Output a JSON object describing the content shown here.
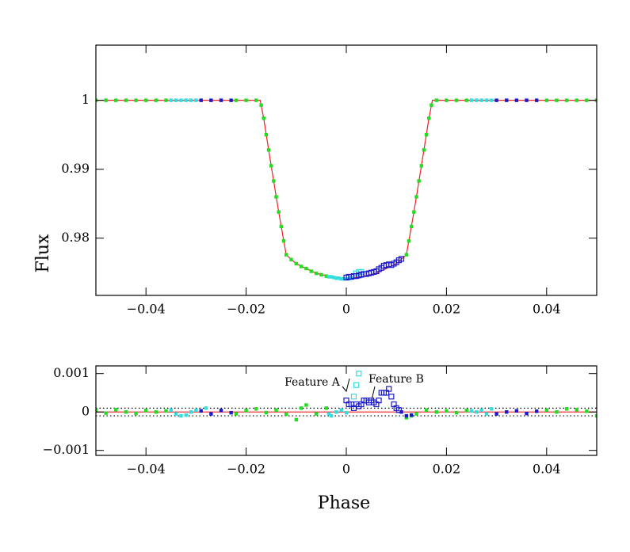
{
  "chart_data": [
    {
      "type": "scatter",
      "ylabel": "Flux",
      "xlim": [
        -0.05,
        0.05
      ],
      "ylim": [
        0.9717,
        1.008
      ],
      "xticks": [
        {
          "value": -0.04,
          "label": "−0.04"
        },
        {
          "value": -0.02,
          "label": "−0.02"
        },
        0,
        0.02,
        0.04
      ],
      "yticks": [
        0.98,
        0.99,
        1
      ],
      "series": [
        {
          "color": "#ee2222",
          "style": "line",
          "x": [
            -0.05,
            -0.0172,
            -0.0165,
            -0.015,
            -0.0135,
            -0.012,
            -0.01,
            -0.006,
            -0.003,
            0,
            0.003,
            0.006,
            0.01,
            0.012,
            0.0135,
            0.015,
            0.0165,
            0.0172,
            0.05
          ],
          "values": [
            1,
            1,
            0.9974,
            0.9905,
            0.9838,
            0.9776,
            0.9763,
            0.9749,
            0.9744,
            0.9741,
            0.9744,
            0.9749,
            0.9763,
            0.9776,
            0.9838,
            0.9905,
            0.9974,
            1,
            1
          ]
        },
        {
          "color": "#22dd22",
          "style": "square",
          "x": [
            -0.05,
            -0.048,
            -0.046,
            -0.044,
            -0.042,
            -0.04,
            -0.038,
            -0.036,
            -0.022,
            -0.02,
            -0.018,
            -0.017,
            -0.0165,
            -0.016,
            -0.0155,
            -0.015,
            -0.0145,
            -0.014,
            -0.0135,
            -0.013,
            -0.0125,
            -0.012,
            -0.011,
            -0.01,
            -0.009,
            -0.008,
            -0.007,
            -0.006,
            -0.005,
            -0.004,
            0.012,
            0.0125,
            0.013,
            0.0135,
            0.014,
            0.0145,
            0.015,
            0.0155,
            0.016,
            0.0165,
            0.017,
            0.018,
            0.02,
            0.022,
            0.024,
            0.04,
            0.042,
            0.044,
            0.046,
            0.048,
            0.05
          ],
          "values": [
            1,
            1,
            1,
            1,
            1,
            1,
            1,
            1,
            1,
            1,
            1,
            0.9993,
            0.9974,
            0.995,
            0.9928,
            0.9905,
            0.9883,
            0.986,
            0.9838,
            0.9817,
            0.9796,
            0.9776,
            0.9769,
            0.9763,
            0.9759,
            0.9756,
            0.9752,
            0.9749,
            0.9747,
            0.9745,
            0.9776,
            0.9796,
            0.9817,
            0.9838,
            0.986,
            0.9883,
            0.9905,
            0.9928,
            0.995,
            0.9974,
            0.9993,
            1,
            1,
            1,
            1,
            1,
            1,
            1,
            1,
            1,
            1
          ]
        },
        {
          "color": "#33dddd",
          "style": "square",
          "x": [
            -0.035,
            -0.034,
            -0.033,
            -0.032,
            -0.031,
            -0.03,
            -0.0035,
            -0.003,
            -0.0025,
            -0.002,
            -0.0015,
            -0.001,
            -0.0005,
            0,
            0.0005,
            0.001,
            0.025,
            0.026,
            0.027,
            0.028,
            0.029
          ],
          "values": [
            1,
            1,
            1,
            1,
            1,
            1,
            0.9744,
            0.9744,
            0.9743,
            0.9742,
            0.9742,
            0.9741,
            0.9741,
            0.9741,
            0.9741,
            0.9742,
            1,
            1,
            1,
            1,
            1
          ]
        },
        {
          "color": "#33dddd",
          "style": "open-square",
          "x": [
            0.002,
            0.0025,
            0.003
          ],
          "values": [
            0.9749,
            0.9751,
            0.9751
          ]
        },
        {
          "color": "#1a1acc",
          "style": "square",
          "x": [
            -0.029,
            -0.027,
            -0.025,
            -0.023,
            0.03,
            0.032,
            0.034,
            0.036,
            0.038
          ],
          "values": [
            1,
            1,
            1,
            1,
            1,
            1,
            1,
            1,
            1
          ]
        },
        {
          "color": "#1a1acc",
          "style": "open-square",
          "x": [
            0,
            0.0005,
            0.001,
            0.0015,
            0.002,
            0.0025,
            0.003,
            0.0035,
            0.004,
            0.0045,
            0.005,
            0.0055,
            0.006,
            0.0065,
            0.007,
            0.0075,
            0.008,
            0.0085,
            0.009,
            0.0095,
            0.01,
            0.0105,
            0.011
          ],
          "values": [
            0.9743,
            0.9744,
            0.9744,
            0.9745,
            0.9745,
            0.9746,
            0.9747,
            0.9748,
            0.9748,
            0.9749,
            0.975,
            0.9751,
            0.9752,
            0.9755,
            0.9757,
            0.976,
            0.9761,
            0.9762,
            0.9761,
            0.9763,
            0.9765,
            0.9768,
            0.977
          ]
        }
      ]
    },
    {
      "type": "scatter",
      "xlabel": "Phase",
      "xlim": [
        -0.05,
        0.05
      ],
      "ylim": [
        -0.00113,
        0.0012
      ],
      "xticks": [
        {
          "value": -0.04,
          "label": "−0.04"
        },
        {
          "value": -0.02,
          "label": "−0.02"
        },
        0,
        0.02,
        0.04
      ],
      "yticks": [
        {
          "value": -0.001,
          "label": "−0.001"
        },
        0,
        0.001
      ],
      "annotations": [
        {
          "text": "Feature A"
        },
        {
          "text": "Feature B"
        }
      ],
      "series": [
        {
          "color": "#ee2222",
          "style": "line",
          "x": [
            -0.05,
            0.05
          ],
          "values": [
            0,
            0
          ]
        },
        {
          "color": "#000000",
          "style": "dotted",
          "x": [
            -0.05,
            0.05
          ],
          "values": [
            0.0001,
            0.0001
          ]
        },
        {
          "color": "#000000",
          "style": "dotted",
          "x": [
            -0.05,
            0.05
          ],
          "values": [
            -0.0001,
            -0.0001
          ]
        },
        {
          "color": "#22dd22",
          "style": "square",
          "x": [
            -0.05,
            -0.048,
            -0.046,
            -0.044,
            -0.042,
            -0.04,
            -0.038,
            -0.036,
            -0.022,
            -0.02,
            -0.018,
            -0.016,
            -0.014,
            -0.012,
            -0.01,
            -0.009,
            -0.008,
            -0.006,
            -0.004,
            0.012,
            0.013,
            0.014,
            0.016,
            0.018,
            0.02,
            0.022,
            0.024,
            0.04,
            0.042,
            0.044,
            0.046,
            0.048,
            0.05
          ],
          "values": [
            5e-05,
            -3e-05,
            6e-05,
            0,
            -4e-05,
            4e-05,
            0,
            3e-05,
            -5e-05,
            4e-05,
            8e-05,
            -2e-05,
            5e-05,
            -6e-05,
            -0.0002,
            0.0001,
            0.00018,
            -5e-05,
            0.0001,
            -0.00015,
            -0.0001,
            -5e-05,
            5e-05,
            0,
            3e-05,
            -2e-05,
            4e-05,
            5e-05,
            0,
            8e-05,
            6e-05,
            2e-05,
            -0.0001
          ]
        },
        {
          "color": "#33dddd",
          "style": "square",
          "x": [
            -0.035,
            -0.034,
            -0.033,
            -0.032,
            -0.031,
            -0.03,
            -0.028,
            -0.0035,
            -0.003,
            -0.002,
            -0.001,
            0,
            0.025,
            0.026,
            0.027,
            0.028,
            0.029
          ],
          "values": [
            5e-05,
            -5e-05,
            -0.0001,
            -8e-05,
            0,
            5e-05,
            0.0001,
            -5e-05,
            -0.0001,
            0,
            5e-05,
            -2e-05,
            3e-05,
            0,
            5e-05,
            -5e-05,
            8e-05
          ]
        },
        {
          "color": "#33dddd",
          "style": "open-square",
          "x": [
            0.0015,
            0.002,
            0.0025
          ],
          "values": [
            0.0004,
            0.0007,
            0.001
          ]
        },
        {
          "color": "#1a1acc",
          "style": "square",
          "x": [
            -0.029,
            -0.027,
            -0.025,
            -0.023,
            0.011,
            0.012,
            0.013,
            0.03,
            0.032,
            0.034,
            0.036,
            0.038
          ],
          "values": [
            3e-05,
            -5e-05,
            4e-05,
            -2e-05,
            0,
            -0.0001,
            -8e-05,
            -5e-05,
            0,
            3e-05,
            -4e-05,
            2e-05
          ]
        },
        {
          "color": "#1a1acc",
          "style": "open-square",
          "x": [
            0,
            0.0005,
            0.001,
            0.0015,
            0.002,
            0.0025,
            0.003,
            0.0035,
            0.004,
            0.0045,
            0.005,
            0.0055,
            0.006,
            0.0065,
            0.007,
            0.0075,
            0.008,
            0.0085,
            0.009,
            0.0095,
            0.01,
            0.0105
          ],
          "values": [
            0.0003,
            0.0002,
            0.0002,
            0.0001,
            0.0002,
            0.00015,
            0.0002,
            0.0003,
            0.0003,
            0.00025,
            0.0003,
            0.00025,
            0.0002,
            0.0003,
            0.0005,
            0.0005,
            0.0005,
            0.0006,
            0.0004,
            0.0002,
            0.0001,
            5e-05
          ]
        }
      ]
    }
  ]
}
